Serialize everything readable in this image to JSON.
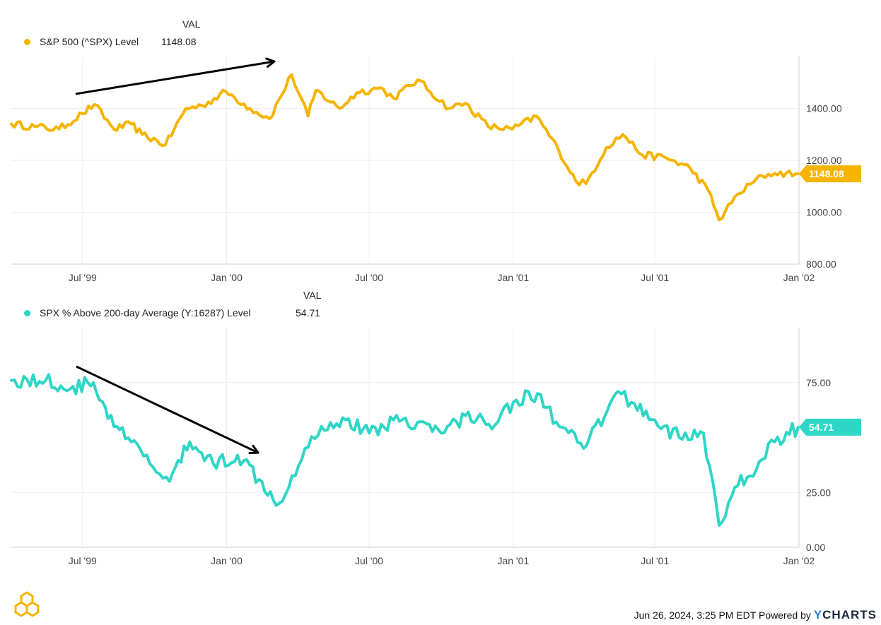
{
  "colors": {
    "sp500": "#F5B400",
    "spx_above": "#2ED6C6",
    "grid": "#EDEDED",
    "arrow": "#000000"
  },
  "panel1": {
    "val_header": "VAL",
    "legend_name": "S&P 500 (^SPX) Level",
    "legend_value": "1148.08",
    "current_tag": "1148.08"
  },
  "panel2": {
    "val_header": "VAL",
    "legend_name": "SPX % Above 200-day Average (Y:16287) Level",
    "legend_value": "54.71",
    "current_tag": "54.71"
  },
  "footer": {
    "timestamp": "Jun 26, 2024, 3:25 PM EDT",
    "powered_by": "Powered by",
    "brand_y": "Y",
    "brand_rest": "CHARTS"
  },
  "chart_data": [
    {
      "type": "line",
      "title": "",
      "xlabel": "",
      "ylabel": "",
      "x_ticks": [
        "Jul '99",
        "Jan '00",
        "Jul '00",
        "Jan '01",
        "Jul '01",
        "Jan '02"
      ],
      "y_ticks": [
        "800.00",
        "1000.00",
        "1200.00",
        "1400.00"
      ],
      "ylim": [
        800,
        1600
      ],
      "xlim": [
        "1999-04-01",
        "2002-01-01"
      ],
      "grid": true,
      "legend": "top-left",
      "series": [
        {
          "name": "S&P 500 (^SPX) Level",
          "x": [
            "1999-04-01",
            "1999-05-01",
            "1999-06-01",
            "1999-07-01",
            "1999-07-16",
            "1999-08-10",
            "1999-09-01",
            "1999-09-15",
            "1999-10-15",
            "1999-11-10",
            "1999-12-01",
            "1999-12-31",
            "2000-01-31",
            "2000-02-25",
            "2000-03-24",
            "2000-04-14",
            "2000-04-24",
            "2000-05-24",
            "2000-06-15",
            "2000-07-15",
            "2000-08-01",
            "2000-09-01",
            "2000-10-11",
            "2000-11-01",
            "2000-11-30",
            "2000-12-31",
            "2001-01-31",
            "2001-02-28",
            "2001-03-22",
            "2001-04-04",
            "2001-04-30",
            "2001-05-21",
            "2001-06-15",
            "2001-07-15",
            "2001-08-15",
            "2001-09-07",
            "2001-09-21",
            "2001-10-15",
            "2001-11-15",
            "2001-12-01",
            "2001-12-31"
          ],
          "y": [
            1340,
            1330,
            1320,
            1380,
            1415,
            1320,
            1340,
            1300,
            1260,
            1400,
            1410,
            1465,
            1400,
            1360,
            1530,
            1370,
            1470,
            1400,
            1460,
            1480,
            1440,
            1510,
            1400,
            1420,
            1330,
            1320,
            1370,
            1240,
            1120,
            1110,
            1250,
            1300,
            1220,
            1210,
            1170,
            1085,
            970,
            1070,
            1140,
            1150,
            1148.08
          ]
        }
      ]
    },
    {
      "type": "line",
      "title": "",
      "xlabel": "",
      "ylabel": "",
      "x_ticks": [
        "Jul '99",
        "Jan '00",
        "Jul '00",
        "Jan '01",
        "Jul '01",
        "Jan '02"
      ],
      "y_ticks": [
        "0.00",
        "25.00",
        "75.00"
      ],
      "ylim": [
        0,
        100
      ],
      "xlim": [
        "1999-04-01",
        "2002-01-01"
      ],
      "grid": true,
      "legend": "top-left",
      "series": [
        {
          "name": "SPX % Above 200-day Average (Y:16287) Level",
          "x": [
            "1999-04-01",
            "1999-05-15",
            "1999-06-15",
            "1999-07-15",
            "1999-08-10",
            "1999-09-01",
            "1999-09-25",
            "1999-10-20",
            "1999-11-15",
            "1999-12-15",
            "2000-01-15",
            "2000-02-15",
            "2000-03-08",
            "2000-04-10",
            "2000-05-01",
            "2000-06-01",
            "2000-07-01",
            "2000-08-01",
            "2000-09-01",
            "2000-10-01",
            "2000-11-01",
            "2000-12-01",
            "2001-01-01",
            "2001-02-01",
            "2001-03-01",
            "2001-04-01",
            "2001-05-01",
            "2001-05-15",
            "2001-06-01",
            "2001-07-01",
            "2001-08-01",
            "2001-09-01",
            "2001-09-21",
            "2001-10-15",
            "2001-11-15",
            "2001-12-01",
            "2001-12-31"
          ],
          "y": [
            76,
            76,
            72,
            75,
            55,
            48,
            38,
            30,
            48,
            38,
            42,
            30,
            20,
            45,
            55,
            58,
            52,
            58,
            57,
            52,
            60,
            56,
            66,
            70,
            55,
            45,
            62,
            71,
            66,
            58,
            50,
            52,
            10,
            28,
            40,
            48,
            54.71
          ]
        }
      ]
    }
  ]
}
